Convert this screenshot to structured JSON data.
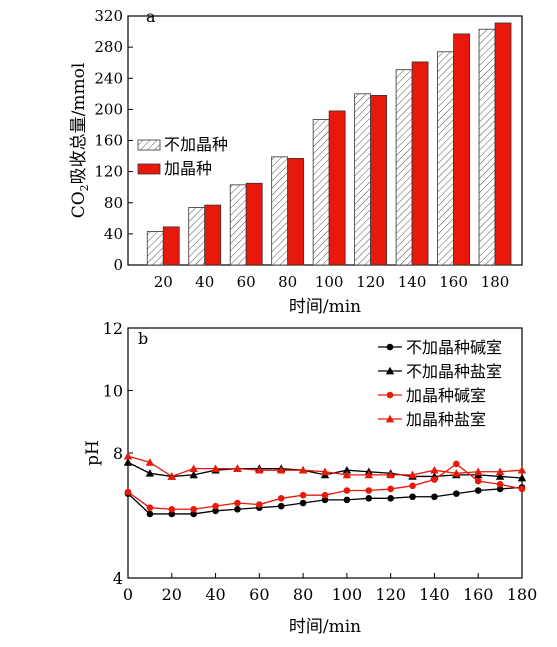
{
  "chart_data": [
    {
      "type": "bar",
      "panel_label": "a",
      "categories": [
        "20",
        "40",
        "60",
        "80",
        "100",
        "120",
        "140",
        "160",
        "180"
      ],
      "series": [
        {
          "name": "不加晶种",
          "values": [
            43,
            74,
            103,
            139,
            187,
            220,
            251,
            274,
            303
          ],
          "color": "#ffffff",
          "pattern": "hatch"
        },
        {
          "name": "加晶种",
          "values": [
            49,
            77,
            105,
            137,
            198,
            218,
            261,
            297,
            311
          ],
          "color": "#e8190b",
          "pattern": "solid"
        }
      ],
      "xlabel": "时间/min",
      "ylabel_parts": [
        "CO",
        "2",
        "吸收总量/mmol"
      ],
      "ylim": [
        0,
        320
      ],
      "yticks": [
        0,
        40,
        80,
        120,
        160,
        200,
        240,
        280,
        320
      ],
      "grid": false,
      "legend_position": "left-middle"
    },
    {
      "type": "line",
      "panel_label": "b",
      "x": [
        0,
        10,
        20,
        30,
        40,
        50,
        60,
        70,
        80,
        90,
        100,
        110,
        120,
        130,
        140,
        150,
        160,
        170,
        180
      ],
      "series": [
        {
          "name": "不加晶种碱室",
          "color": "#000000",
          "marker": "circle",
          "values": [
            6.7,
            6.05,
            6.05,
            6.05,
            6.15,
            6.2,
            6.25,
            6.3,
            6.4,
            6.5,
            6.5,
            6.55,
            6.55,
            6.6,
            6.6,
            6.7,
            6.8,
            6.85,
            6.9
          ]
        },
        {
          "name": "不加晶种盐室",
          "color": "#000000",
          "marker": "triangle",
          "values": [
            7.7,
            7.35,
            7.25,
            7.3,
            7.45,
            7.5,
            7.5,
            7.5,
            7.45,
            7.3,
            7.45,
            7.4,
            7.35,
            7.25,
            7.25,
            7.3,
            7.3,
            7.25,
            7.2
          ]
        },
        {
          "name": "加晶种碱室",
          "color": "#e8190b",
          "marker": "circle",
          "values": [
            6.75,
            6.25,
            6.2,
            6.2,
            6.3,
            6.4,
            6.35,
            6.55,
            6.65,
            6.65,
            6.8,
            6.8,
            6.85,
            6.95,
            7.15,
            7.65,
            7.1,
            7.0,
            6.85
          ]
        },
        {
          "name": "加晶种盐室",
          "color": "#e8190b",
          "marker": "triangle",
          "values": [
            7.9,
            7.7,
            7.25,
            7.5,
            7.5,
            7.5,
            7.45,
            7.45,
            7.45,
            7.4,
            7.3,
            7.3,
            7.3,
            7.3,
            7.45,
            7.35,
            7.4,
            7.4,
            7.45
          ]
        }
      ],
      "xlabel": "时间/min",
      "ylabel": "pH",
      "xlim": [
        0,
        180
      ],
      "ylim": [
        4,
        12
      ],
      "xticks": [
        0,
        20,
        40,
        60,
        80,
        100,
        120,
        140,
        160,
        180
      ],
      "yticks": [
        4,
        8,
        10,
        12
      ],
      "grid": false,
      "legend_position": "top-right"
    }
  ]
}
